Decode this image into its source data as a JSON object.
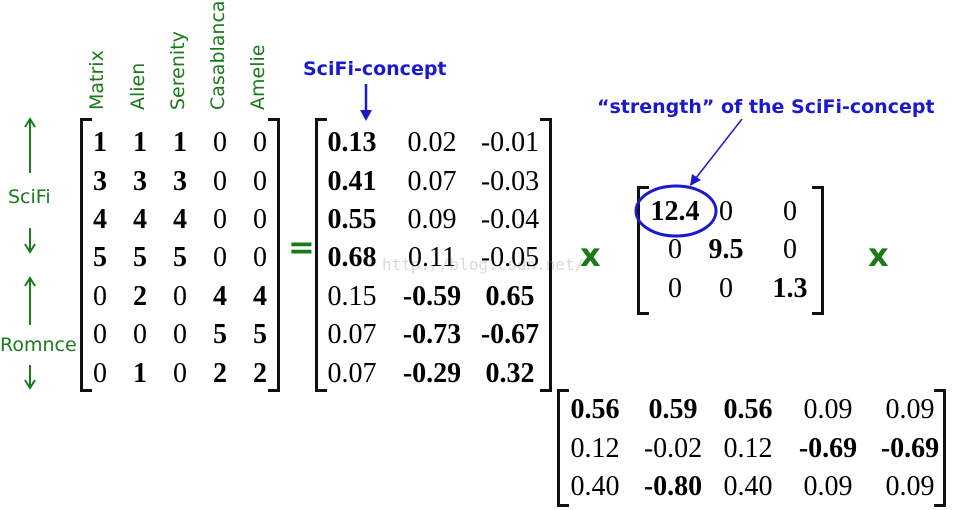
{
  "movies": [
    "Matrix",
    "Alien",
    "Serenity",
    "Casablanca",
    "Amelie"
  ],
  "row_groups": {
    "scifi": "SciFi",
    "romance": "Romnce"
  },
  "annotations": {
    "scifi_concept": "SciFi-concept",
    "strength": "“strength” of the SciFi-concept"
  },
  "operators": {
    "equals": "=",
    "times": "x"
  },
  "watermark": "http://blog.csdn.net/",
  "colors": {
    "labels": "#1b7a1b",
    "annotation": "#1a1acc",
    "text": "#000000"
  },
  "matrices": {
    "A": [
      [
        {
          "v": "1",
          "b": true
        },
        {
          "v": "1",
          "b": true
        },
        {
          "v": "1",
          "b": true
        },
        {
          "v": "0",
          "b": false
        },
        {
          "v": "0",
          "b": false
        }
      ],
      [
        {
          "v": "3",
          "b": true
        },
        {
          "v": "3",
          "b": true
        },
        {
          "v": "3",
          "b": true
        },
        {
          "v": "0",
          "b": false
        },
        {
          "v": "0",
          "b": false
        }
      ],
      [
        {
          "v": "4",
          "b": true
        },
        {
          "v": "4",
          "b": true
        },
        {
          "v": "4",
          "b": true
        },
        {
          "v": "0",
          "b": false
        },
        {
          "v": "0",
          "b": false
        }
      ],
      [
        {
          "v": "5",
          "b": true
        },
        {
          "v": "5",
          "b": true
        },
        {
          "v": "5",
          "b": true
        },
        {
          "v": "0",
          "b": false
        },
        {
          "v": "0",
          "b": false
        }
      ],
      [
        {
          "v": "0",
          "b": false
        },
        {
          "v": "2",
          "b": true
        },
        {
          "v": "0",
          "b": false
        },
        {
          "v": "4",
          "b": true
        },
        {
          "v": "4",
          "b": true
        }
      ],
      [
        {
          "v": "0",
          "b": false
        },
        {
          "v": "0",
          "b": false
        },
        {
          "v": "0",
          "b": false
        },
        {
          "v": "5",
          "b": true
        },
        {
          "v": "5",
          "b": true
        }
      ],
      [
        {
          "v": "0",
          "b": false
        },
        {
          "v": "1",
          "b": true
        },
        {
          "v": "0",
          "b": false
        },
        {
          "v": "2",
          "b": true
        },
        {
          "v": "2",
          "b": true
        }
      ]
    ],
    "U": [
      [
        {
          "v": "0.13",
          "b": true
        },
        {
          "v": "0.02",
          "b": false
        },
        {
          "v": "-0.01",
          "b": false
        }
      ],
      [
        {
          "v": "0.41",
          "b": true
        },
        {
          "v": "0.07",
          "b": false
        },
        {
          "v": "-0.03",
          "b": false
        }
      ],
      [
        {
          "v": "0.55",
          "b": true
        },
        {
          "v": "0.09",
          "b": false
        },
        {
          "v": "-0.04",
          "b": false
        }
      ],
      [
        {
          "v": "0.68",
          "b": true
        },
        {
          "v": "0.11",
          "b": false
        },
        {
          "v": "-0.05",
          "b": false
        }
      ],
      [
        {
          "v": "0.15",
          "b": false
        },
        {
          "v": "-0.59",
          "b": true
        },
        {
          "v": "0.65",
          "b": true
        }
      ],
      [
        {
          "v": "0.07",
          "b": false
        },
        {
          "v": "-0.73",
          "b": true
        },
        {
          "v": "-0.67",
          "b": true
        }
      ],
      [
        {
          "v": "0.07",
          "b": false
        },
        {
          "v": "-0.29",
          "b": true
        },
        {
          "v": "0.32",
          "b": true
        }
      ]
    ],
    "Sigma": [
      [
        {
          "v": "12.4",
          "b": true
        },
        {
          "v": "0",
          "b": false
        },
        {
          "v": "0",
          "b": false
        }
      ],
      [
        {
          "v": "0",
          "b": false
        },
        {
          "v": "9.5",
          "b": true
        },
        {
          "v": "0",
          "b": false
        }
      ],
      [
        {
          "v": "0",
          "b": false
        },
        {
          "v": "0",
          "b": false
        },
        {
          "v": "1.3",
          "b": true
        }
      ]
    ],
    "VT": [
      [
        {
          "v": "0.56",
          "b": true
        },
        {
          "v": "0.59",
          "b": true
        },
        {
          "v": "0.56",
          "b": true
        },
        {
          "v": "0.09",
          "b": false
        },
        {
          "v": "0.09",
          "b": false
        }
      ],
      [
        {
          "v": "0.12",
          "b": false
        },
        {
          "v": "-0.02",
          "b": false
        },
        {
          "v": "0.12",
          "b": false
        },
        {
          "v": "-0.69",
          "b": true
        },
        {
          "v": "-0.69",
          "b": true
        }
      ],
      [
        {
          "v": "0.40",
          "b": false
        },
        {
          "v": "-0.80",
          "b": true
        },
        {
          "v": "0.40",
          "b": false
        },
        {
          "v": "0.09",
          "b": false
        },
        {
          "v": "0.09",
          "b": false
        }
      ]
    ]
  }
}
